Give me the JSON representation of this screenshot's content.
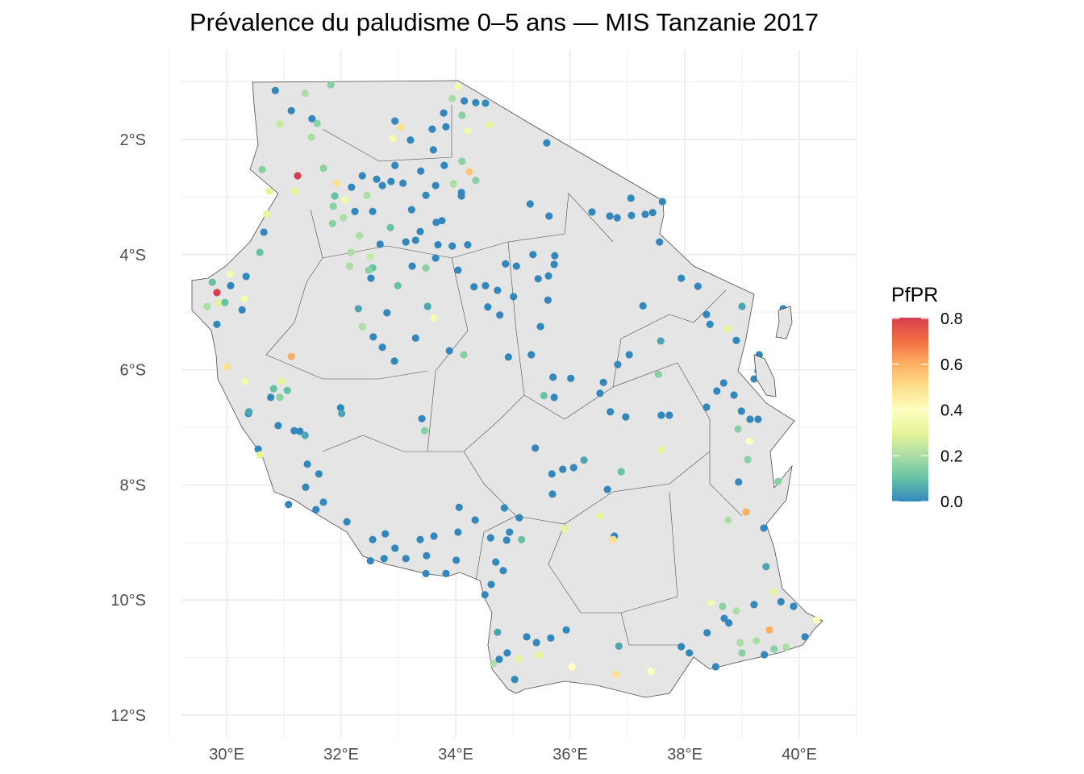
{
  "title": "Prévalence du paludisme 0–5 ans — MIS Tanzanie 2017",
  "chart_data": {
    "type": "scatter",
    "title": "Prévalence du paludisme 0–5 ans — MIS Tanzanie 2017",
    "xlim": [
      28.8,
      41.0
    ],
    "ylim": [
      -12.0,
      -0.9
    ],
    "grid": true,
    "x_ticks": [
      {
        "value": 30,
        "label": "30°E"
      },
      {
        "value": 32,
        "label": "32°E"
      },
      {
        "value": 34,
        "label": "34°E"
      },
      {
        "value": 36,
        "label": "36°E"
      },
      {
        "value": 38,
        "label": "38°E"
      },
      {
        "value": 40,
        "label": "40°E"
      }
    ],
    "y_ticks": [
      {
        "value": -2,
        "label": "2°S"
      },
      {
        "value": -4,
        "label": "4°S"
      },
      {
        "value": -6,
        "label": "6°S"
      },
      {
        "value": -8,
        "label": "8°S"
      },
      {
        "value": -10,
        "label": "10°S"
      },
      {
        "value": -12,
        "label": "12°S"
      }
    ],
    "legend": {
      "title": "PfPR",
      "placement": "right",
      "range": [
        0,
        0.8
      ],
      "ticks": [
        {
          "value": 0.8,
          "label": "0.8"
        },
        {
          "value": 0.6,
          "label": "0.6"
        },
        {
          "value": 0.4,
          "label": "0.4"
        },
        {
          "value": 0.2,
          "label": "0.2"
        },
        {
          "value": 0.0,
          "label": "0.0"
        }
      ],
      "palette": [
        "#3288bd",
        "#66c2a5",
        "#abdda4",
        "#e6f598",
        "#ffffbf",
        "#fee08b",
        "#fdae61",
        "#f46d43",
        "#d53e4f"
      ]
    },
    "colors": {
      "land": "#e5e5e5",
      "border": "#4d4d4d",
      "grid": "#ebebeb"
    },
    "points_fields": [
      "lon",
      "lat",
      "pfpr"
    ],
    "points": [
      [
        30.85,
        -1.15,
        0
      ],
      [
        31.37,
        -1.2,
        0.2
      ],
      [
        31.13,
        -1.5,
        0
      ],
      [
        30.93,
        -1.73,
        0.25
      ],
      [
        31.49,
        -1.64,
        0
      ],
      [
        31.58,
        -1.72,
        0.15
      ],
      [
        31.48,
        -1.96,
        0.2
      ],
      [
        31.82,
        -1.05,
        0.15
      ],
      [
        30.62,
        -2.52,
        0.15
      ],
      [
        31.24,
        -2.63,
        0.8
      ],
      [
        30.75,
        -2.9,
        0.3
      ],
      [
        31.2,
        -2.9,
        0.3
      ],
      [
        30.7,
        -3.3,
        0.3
      ],
      [
        30.65,
        -3.61,
        0
      ],
      [
        30.58,
        -3.96,
        0.1
      ],
      [
        31.69,
        -2.5,
        0.15
      ],
      [
        31.92,
        -2.76,
        0.5
      ],
      [
        31.89,
        -2.98,
        0.1
      ],
      [
        32.07,
        -3.05,
        0.35
      ],
      [
        31.86,
        -3.16,
        0.15
      ],
      [
        32.04,
        -3.36,
        0.2
      ],
      [
        31.85,
        -3.46,
        0.15
      ],
      [
        32.32,
        -3.67,
        0.2
      ],
      [
        32.17,
        -3.96,
        0.2
      ],
      [
        32.15,
        -4.2,
        0.2
      ],
      [
        32.51,
        -4.03,
        0.25
      ],
      [
        32.55,
        -4.23,
        0.1
      ],
      [
        32.48,
        -4.27,
        0.15
      ],
      [
        32.37,
        -2.63,
        0
      ],
      [
        32.62,
        -2.69,
        0
      ],
      [
        32.72,
        -2.8,
        0
      ],
      [
        32.94,
        -2.45,
        0
      ],
      [
        32.87,
        -2.73,
        0
      ],
      [
        32.55,
        -3.25,
        0
      ],
      [
        33.08,
        -2.76,
        0
      ],
      [
        33.39,
        -2.55,
        0
      ],
      [
        33.48,
        -2.97,
        0
      ],
      [
        33.66,
        -3.44,
        0
      ],
      [
        33.65,
        -2.8,
        0
      ],
      [
        33.8,
        -2.45,
        0
      ],
      [
        33.96,
        -2.77,
        0.2
      ],
      [
        34.11,
        -2.38,
        0.15
      ],
      [
        34.24,
        -2.56,
        0.55
      ],
      [
        34.1,
        -2.98,
        0
      ],
      [
        34.35,
        -2.71,
        0.15
      ],
      [
        32.94,
        -1.68,
        0
      ],
      [
        33.04,
        -1.79,
        0.5
      ],
      [
        32.9,
        -1.99,
        0.35
      ],
      [
        33.59,
        -1.82,
        0
      ],
      [
        33.83,
        -1.78,
        0
      ],
      [
        33.79,
        -1.54,
        0
      ],
      [
        33.61,
        -2.18,
        0
      ],
      [
        33.21,
        -2.01,
        0
      ],
      [
        34.04,
        -1.08,
        0.35
      ],
      [
        34.15,
        -1.33,
        0
      ],
      [
        34.35,
        -1.36,
        0
      ],
      [
        34.52,
        -1.37,
        0
      ],
      [
        34.59,
        -1.75,
        0.3
      ],
      [
        34.21,
        -1.85,
        0.35
      ],
      [
        34.11,
        -1.58,
        0.15
      ],
      [
        33.94,
        -1.29,
        0.2
      ],
      [
        35.59,
        -2.06,
        0
      ],
      [
        35.3,
        -3.12,
        0
      ],
      [
        35.63,
        -3.33,
        0
      ],
      [
        36.38,
        -3.26,
        0
      ],
      [
        36.69,
        -3.33,
        0
      ],
      [
        37.06,
        -3.02,
        0
      ],
      [
        37.31,
        -3.3,
        0
      ],
      [
        37.61,
        -3.08,
        0
      ],
      [
        37.56,
        -3.78,
        0
      ],
      [
        37.94,
        -4.41,
        0
      ],
      [
        38.23,
        -4.55,
        0
      ],
      [
        38.38,
        -5.04,
        0
      ],
      [
        38.44,
        -5.21,
        0
      ],
      [
        38.75,
        -5.29,
        0.3
      ],
      [
        39.0,
        -4.9,
        0.05
      ],
      [
        39.72,
        -4.94,
        0
      ],
      [
        39.73,
        -5.32,
        0
      ],
      [
        39.8,
        -5.11,
        0
      ],
      [
        39.68,
        -5.35,
        0
      ],
      [
        38.9,
        -5.49,
        0
      ],
      [
        38.68,
        -6.23,
        0
      ],
      [
        38.38,
        -6.65,
        0
      ],
      [
        38.56,
        -6.37,
        0
      ],
      [
        38.86,
        -6.44,
        0
      ],
      [
        39.3,
        -5.74,
        0
      ],
      [
        39.28,
        -5.88,
        0
      ],
      [
        39.28,
        -6.02,
        0
      ],
      [
        39.21,
        -6.16,
        0
      ],
      [
        39.35,
        -6.09,
        0
      ],
      [
        39.42,
        -6.3,
        0
      ],
      [
        39.52,
        -6.4,
        0
      ],
      [
        38.99,
        -6.72,
        0
      ],
      [
        39.14,
        -6.86,
        0
      ],
      [
        39.28,
        -6.86,
        0
      ],
      [
        38.93,
        -7.03,
        0.15
      ],
      [
        39.13,
        -7.24,
        0.4
      ],
      [
        39.1,
        -7.56,
        0.15
      ],
      [
        38.94,
        -7.95,
        0
      ],
      [
        39.63,
        -7.94,
        0.15
      ],
      [
        39.07,
        -8.47,
        0.6
      ],
      [
        38.76,
        -8.61,
        0.2
      ],
      [
        39.38,
        -8.75,
        0
      ],
      [
        39.42,
        -9.42,
        0.05
      ],
      [
        39.55,
        -9.86,
        0.3
      ],
      [
        39.68,
        -10.03,
        0
      ],
      [
        39.9,
        -10.11,
        0
      ],
      [
        40.3,
        -10.35,
        0.4
      ],
      [
        40.1,
        -10.64,
        0
      ],
      [
        39.48,
        -10.52,
        0.6
      ],
      [
        39.25,
        -10.71,
        0.2
      ],
      [
        38.97,
        -10.74,
        0.2
      ],
      [
        39.56,
        -10.85,
        0.15
      ],
      [
        39.77,
        -10.82,
        0.2
      ],
      [
        39.39,
        -10.95,
        0
      ],
      [
        38.54,
        -11.16,
        0
      ],
      [
        38.08,
        -10.92,
        0
      ],
      [
        37.94,
        -10.81,
        0
      ],
      [
        38.46,
        -10.05,
        0.35
      ],
      [
        38.66,
        -10.11,
        0.15
      ],
      [
        38.77,
        -10.4,
        0
      ],
      [
        38.69,
        -10.32,
        0
      ],
      [
        38.9,
        -10.19,
        0.2
      ],
      [
        39.21,
        -10.08,
        0
      ],
      [
        38.39,
        -10.57,
        0
      ],
      [
        39.0,
        -10.92,
        0.15
      ],
      [
        37.41,
        -11.24,
        0.4
      ],
      [
        36.8,
        -11.29,
        0.5
      ],
      [
        36.85,
        -10.8,
        0.05
      ],
      [
        36.03,
        -11.16,
        0.4
      ],
      [
        35.46,
        -10.96,
        0.3
      ],
      [
        35.1,
        -11.02,
        0.3
      ],
      [
        34.66,
        -11.1,
        0.2
      ],
      [
        34.76,
        -11.03,
        0
      ],
      [
        34.9,
        -10.92,
        0
      ],
      [
        35.03,
        -11.38,
        0
      ],
      [
        35.24,
        -10.64,
        0
      ],
      [
        35.41,
        -10.74,
        0
      ],
      [
        35.66,
        -10.66,
        0
      ],
      [
        35.93,
        -10.52,
        0
      ],
      [
        34.73,
        -10.56,
        0.05
      ],
      [
        34.51,
        -9.91,
        0
      ],
      [
        34.62,
        -9.73,
        0
      ],
      [
        34.83,
        -9.49,
        0
      ],
      [
        34.7,
        -9.34,
        0
      ],
      [
        34.89,
        -8.96,
        0
      ],
      [
        35.15,
        -8.95,
        0.1
      ],
      [
        34.94,
        -8.82,
        0
      ],
      [
        34.61,
        -8.92,
        0
      ],
      [
        34.34,
        -8.61,
        0
      ],
      [
        34.04,
        -8.82,
        0
      ],
      [
        34.01,
        -9.31,
        0
      ],
      [
        33.83,
        -9.54,
        0
      ],
      [
        33.48,
        -9.54,
        0
      ],
      [
        33.49,
        -9.23,
        0
      ],
      [
        33.38,
        -8.95,
        0
      ],
      [
        33.62,
        -8.89,
        0
      ],
      [
        33.13,
        -9.28,
        0
      ],
      [
        32.94,
        -9.1,
        0
      ],
      [
        32.77,
        -8.85,
        0
      ],
      [
        32.55,
        -8.95,
        0
      ],
      [
        32.75,
        -9.28,
        0
      ],
      [
        32.51,
        -9.32,
        0
      ],
      [
        32.1,
        -8.64,
        0
      ],
      [
        31.56,
        -8.43,
        0
      ],
      [
        31.61,
        -7.81,
        0
      ],
      [
        31.41,
        -7.64,
        0
      ],
      [
        31.38,
        -8.04,
        0
      ],
      [
        31.69,
        -8.3,
        0
      ],
      [
        31.08,
        -8.34,
        0
      ],
      [
        30.9,
        -6.97,
        0
      ],
      [
        30.77,
        -6.48,
        0
      ],
      [
        30.93,
        -6.48,
        0.15
      ],
      [
        31.06,
        -6.36,
        0.1
      ],
      [
        30.96,
        -6.2,
        0.3
      ],
      [
        30.82,
        -6.33,
        0.1
      ],
      [
        30.38,
        -6.76,
        0
      ],
      [
        30.55,
        -7.38,
        0
      ],
      [
        30.58,
        -7.48,
        0.3
      ],
      [
        30.01,
        -5.95,
        0.5
      ],
      [
        30.32,
        -6.2,
        0.35
      ],
      [
        30.39,
        -6.73,
        0.05
      ],
      [
        29.83,
        -4.66,
        0.8
      ],
      [
        29.75,
        -4.48,
        0.1
      ],
      [
        29.86,
        -4.84,
        0.3
      ],
      [
        29.83,
        -5.21,
        0
      ],
      [
        29.97,
        -4.83,
        0.1
      ],
      [
        30.06,
        -4.34,
        0.35
      ],
      [
        30.07,
        -4.54,
        0
      ],
      [
        30.31,
        -4.77,
        0.35
      ],
      [
        30.27,
        -4.96,
        0
      ],
      [
        30.34,
        -4.38,
        0
      ],
      [
        31.13,
        -5.77,
        0.6
      ],
      [
        29.66,
        -4.9,
        0.2
      ],
      [
        31.28,
        -7.07,
        0
      ],
      [
        31.37,
        -7.14,
        0.05
      ],
      [
        31.18,
        -7.06,
        0
      ],
      [
        31.99,
        -6.66,
        0
      ],
      [
        32.01,
        -6.76,
        0.05
      ],
      [
        32.3,
        -4.94,
        0.05
      ],
      [
        32.37,
        -5.25,
        0.2
      ],
      [
        32.56,
        -5.43,
        0
      ],
      [
        32.72,
        -5.61,
        0
      ],
      [
        32.93,
        -5.85,
        0
      ],
      [
        32.8,
        -5.01,
        0
      ],
      [
        32.99,
        -4.54,
        0.1
      ],
      [
        33.3,
        -5.45,
        0
      ],
      [
        33.51,
        -4.9,
        0.05
      ],
      [
        33.61,
        -5.1,
        0.35
      ],
      [
        32.52,
        -4.41,
        0
      ],
      [
        32.68,
        -3.82,
        0
      ],
      [
        32.86,
        -3.53,
        0.1
      ],
      [
        33.13,
        -3.78,
        0
      ],
      [
        33.3,
        -3.75,
        0
      ],
      [
        33.38,
        -3.6,
        0
      ],
      [
        33.69,
        -3.83,
        0
      ],
      [
        33.94,
        -3.85,
        0
      ],
      [
        34.21,
        -3.83,
        0
      ],
      [
        34.04,
        -4.27,
        0
      ],
      [
        33.65,
        -4.06,
        0
      ],
      [
        33.24,
        -4.2,
        0
      ],
      [
        33.48,
        -4.23,
        0.15
      ],
      [
        34.14,
        -5.74,
        0.15
      ],
      [
        33.89,
        -5.67,
        0
      ],
      [
        34.32,
        -4.56,
        0
      ],
      [
        34.52,
        -4.54,
        0
      ],
      [
        34.73,
        -4.62,
        0
      ],
      [
        34.87,
        -4.16,
        0
      ],
      [
        35.06,
        -4.2,
        0
      ],
      [
        35.35,
        -4.0,
        0
      ],
      [
        35.73,
        -4.02,
        0
      ],
      [
        35.72,
        -4.17,
        0
      ],
      [
        35.62,
        -4.37,
        0
      ],
      [
        35.44,
        -4.42,
        0
      ],
      [
        35.01,
        -4.73,
        0
      ],
      [
        34.56,
        -4.91,
        0
      ],
      [
        34.77,
        -5.05,
        0
      ],
      [
        35.48,
        -5.25,
        0
      ],
      [
        35.61,
        -4.79,
        0
      ],
      [
        34.92,
        -5.78,
        0
      ],
      [
        35.32,
        -5.74,
        0
      ],
      [
        35.54,
        -6.45,
        0.1
      ],
      [
        35.72,
        -6.48,
        0
      ],
      [
        35.7,
        -6.13,
        0
      ],
      [
        36.01,
        -6.15,
        0
      ],
      [
        36.58,
        -6.22,
        0
      ],
      [
        36.52,
        -6.41,
        0
      ],
      [
        36.7,
        -6.73,
        0
      ],
      [
        36.83,
        -5.91,
        0
      ],
      [
        36.97,
        -6.82,
        0
      ],
      [
        37.03,
        -5.74,
        0
      ],
      [
        37.58,
        -5.5,
        0.05
      ],
      [
        37.54,
        -6.08,
        0.15
      ],
      [
        37.59,
        -6.79,
        0
      ],
      [
        37.73,
        -6.79,
        0
      ],
      [
        37.27,
        -4.89,
        0
      ],
      [
        37.59,
        -7.39,
        0.3
      ],
      [
        36.89,
        -7.77,
        0.1
      ],
      [
        36.65,
        -8.08,
        0
      ],
      [
        36.24,
        -7.57,
        0.05
      ],
      [
        36.06,
        -7.7,
        0
      ],
      [
        35.87,
        -7.73,
        0
      ],
      [
        35.68,
        -7.81,
        0
      ],
      [
        35.69,
        -8.16,
        0
      ],
      [
        35.39,
        -7.36,
        0
      ],
      [
        36.52,
        -8.54,
        0.3
      ],
      [
        36.77,
        -8.89,
        0
      ],
      [
        36.75,
        -8.95,
        0.5
      ],
      [
        35.9,
        -8.76,
        0.3
      ],
      [
        34.85,
        -8.4,
        0
      ],
      [
        35.11,
        -8.57,
        0
      ],
      [
        34.06,
        -8.39,
        0
      ],
      [
        33.46,
        -7.06,
        0.15
      ],
      [
        33.41,
        -6.85,
        0
      ],
      [
        37.07,
        -3.32,
        0
      ],
      [
        36.82,
        -3.36,
        0
      ],
      [
        37.44,
        -3.27,
        0
      ],
      [
        32.18,
        -2.83,
        0
      ],
      [
        32.24,
        -3.25,
        0
      ],
      [
        32.45,
        -2.97,
        0.2
      ],
      [
        33.23,
        -3.22,
        0
      ],
      [
        33.76,
        -3.41,
        0
      ],
      [
        34.1,
        -2.92,
        0
      ]
    ]
  }
}
